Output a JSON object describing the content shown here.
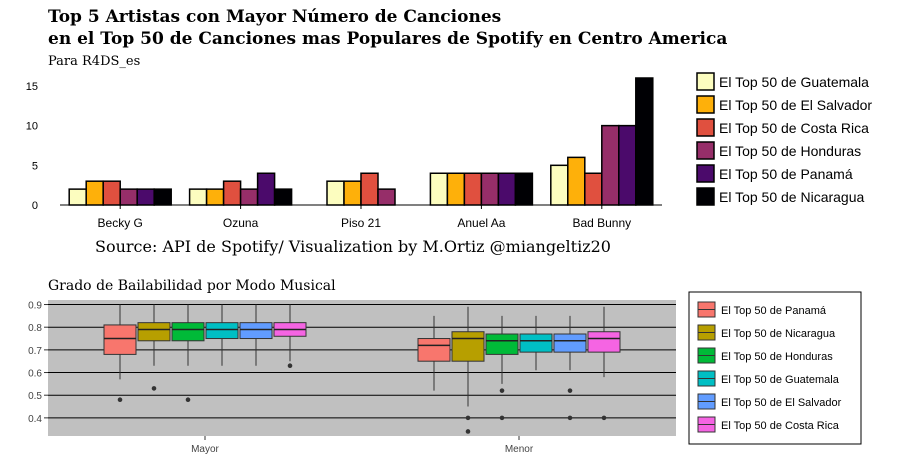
{
  "chart_data": [
    {
      "type": "bar",
      "title_line1": "Top 5 Artistas con Mayor Número de Canciones",
      "title_line2": "en el Top 50 de Canciones mas Populares de Spotify en Centro America",
      "subtitle": "Para R4DS_es",
      "caption": "Source: API de Spotify/ Visualization by M.Ortiz @miangeltiz20",
      "xlabel": "",
      "ylabel": "",
      "ylim": [
        0,
        16
      ],
      "yticks": [
        "0",
        "5",
        "10",
        "15"
      ],
      "categories": [
        "Becky G",
        "Ozuna",
        "Piso 21",
        "Anuel Aa",
        "Bad Bunny"
      ],
      "legend_position": "right",
      "series": [
        {
          "name": "El Top 50 de Guatemala",
          "color": "#fcfdbf",
          "values": [
            2,
            2,
            3,
            4,
            5
          ]
        },
        {
          "name": "El Top 50 de El Salvador",
          "color": "#feb00a",
          "values": [
            3,
            2,
            3,
            4,
            6
          ]
        },
        {
          "name": "El Top 50 de Costa Rica",
          "color": "#e0503f",
          "values": [
            3,
            3,
            4,
            4,
            4
          ]
        },
        {
          "name": "El Top 50 de Honduras",
          "color": "#962e69",
          "values": [
            2,
            2,
            2,
            4,
            10
          ]
        },
        {
          "name": "El Top 50 de Panamá",
          "color": "#4b0a6b",
          "values": [
            2,
            4,
            null,
            4,
            10
          ]
        },
        {
          "name": "El Top 50 de Nicaragua",
          "color": "#000004",
          "values": [
            2,
            2,
            null,
            4,
            16
          ]
        }
      ]
    },
    {
      "type": "boxplot",
      "title": "Grado de Bailabilidad por Modo Musical",
      "xlabel": "",
      "ylabel": "",
      "ylim": [
        0.32,
        0.92
      ],
      "yticks": [
        "0.4",
        "0.5",
        "0.6",
        "0.7",
        "0.8",
        "0.9"
      ],
      "categories": [
        "Mayor",
        "Menor"
      ],
      "grid": true,
      "legend_position": "right",
      "series": [
        {
          "name": "El Top 50 de Panamá",
          "color": "#f8766d",
          "boxes": [
            {
              "q1": 0.68,
              "median": 0.75,
              "q3": 0.81,
              "whisker_low": 0.57,
              "whisker_high": 0.9,
              "outliers": [
                0.48
              ]
            },
            {
              "q1": 0.65,
              "median": 0.72,
              "q3": 0.75,
              "whisker_low": 0.52,
              "whisker_high": 0.85,
              "outliers": []
            }
          ]
        },
        {
          "name": "El Top 50 de Nicaragua",
          "color": "#b79f00",
          "boxes": [
            {
              "q1": 0.74,
              "median": 0.79,
              "q3": 0.82,
              "whisker_low": 0.63,
              "whisker_high": 0.9,
              "outliers": [
                0.53
              ]
            },
            {
              "q1": 0.65,
              "median": 0.75,
              "q3": 0.78,
              "whisker_low": 0.45,
              "whisker_high": 0.89,
              "outliers": [
                0.4,
                0.34
              ]
            }
          ]
        },
        {
          "name": "El Top 50 de Honduras",
          "color": "#00ba38",
          "boxes": [
            {
              "q1": 0.74,
              "median": 0.79,
              "q3": 0.82,
              "whisker_low": 0.63,
              "whisker_high": 0.9,
              "outliers": [
                0.48
              ]
            },
            {
              "q1": 0.68,
              "median": 0.74,
              "q3": 0.77,
              "whisker_low": 0.55,
              "whisker_high": 0.85,
              "outliers": [
                0.52,
                0.4
              ]
            }
          ]
        },
        {
          "name": "El Top 50 de Guatemala",
          "color": "#00bfc4",
          "boxes": [
            {
              "q1": 0.75,
              "median": 0.79,
              "q3": 0.82,
              "whisker_low": 0.63,
              "whisker_high": 0.9,
              "outliers": []
            },
            {
              "q1": 0.69,
              "median": 0.74,
              "q3": 0.77,
              "whisker_low": 0.61,
              "whisker_high": 0.85,
              "outliers": []
            }
          ]
        },
        {
          "name": "El Top 50 de El Salvador",
          "color": "#619cff",
          "boxes": [
            {
              "q1": 0.75,
              "median": 0.79,
              "q3": 0.82,
              "whisker_low": 0.63,
              "whisker_high": 0.9,
              "outliers": []
            },
            {
              "q1": 0.69,
              "median": 0.74,
              "q3": 0.77,
              "whisker_low": 0.61,
              "whisker_high": 0.85,
              "outliers": [
                0.52,
                0.4
              ]
            }
          ]
        },
        {
          "name": "El Top 50 de Costa Rica",
          "color": "#f564e3",
          "boxes": [
            {
              "q1": 0.76,
              "median": 0.79,
              "q3": 0.82,
              "whisker_low": 0.65,
              "whisker_high": 0.9,
              "outliers": [
                0.63
              ]
            },
            {
              "q1": 0.69,
              "median": 0.75,
              "q3": 0.78,
              "whisker_low": 0.58,
              "whisker_high": 0.89,
              "outliers": [
                0.4
              ]
            }
          ]
        }
      ]
    }
  ]
}
